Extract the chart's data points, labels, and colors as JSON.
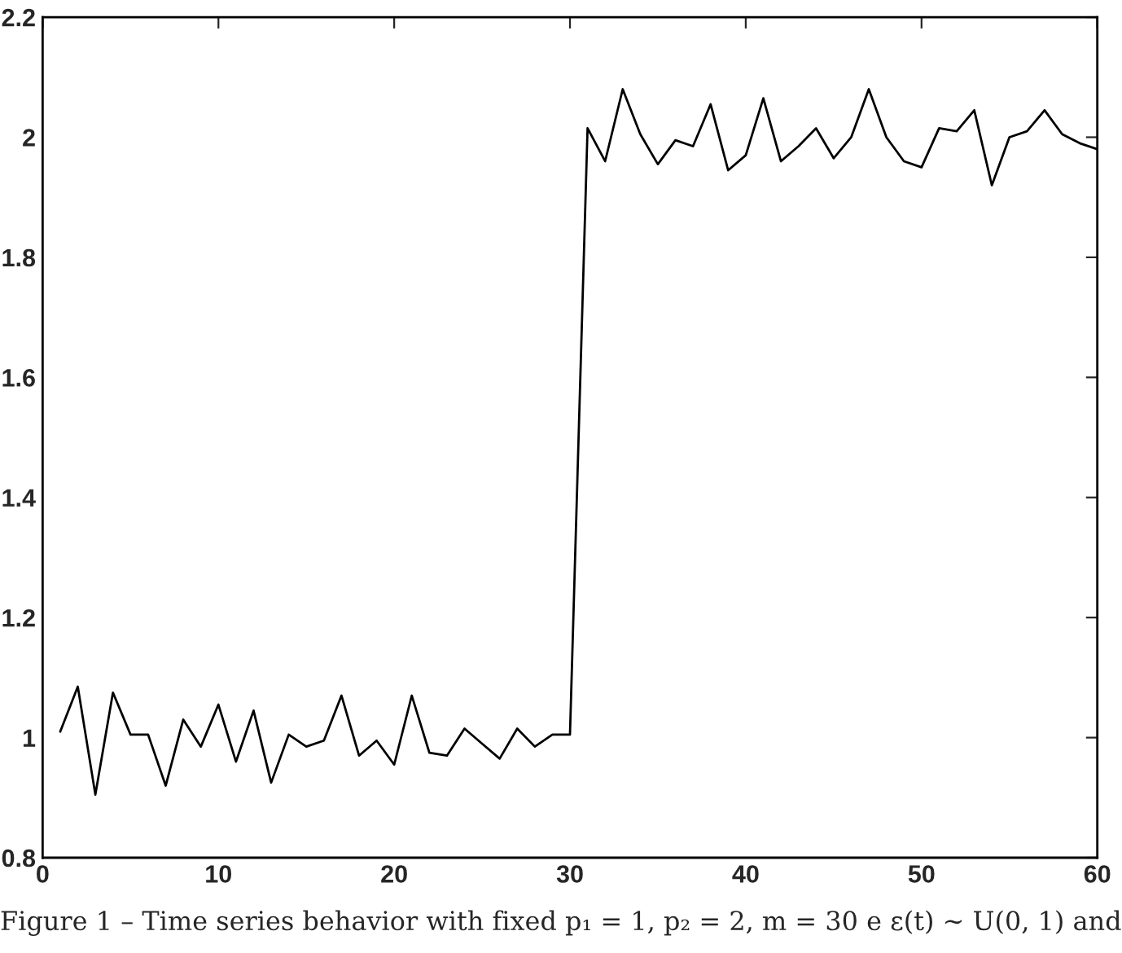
{
  "chart_data": {
    "type": "line",
    "x": [
      1,
      2,
      3,
      4,
      5,
      6,
      7,
      8,
      9,
      10,
      11,
      12,
      13,
      14,
      15,
      16,
      17,
      18,
      19,
      20,
      21,
      22,
      23,
      24,
      25,
      26,
      27,
      28,
      29,
      30,
      31,
      32,
      33,
      34,
      35,
      36,
      37,
      38,
      39,
      40,
      41,
      42,
      43,
      44,
      45,
      46,
      47,
      48,
      49,
      50,
      51,
      52,
      53,
      54,
      55,
      56,
      57,
      58,
      59,
      60
    ],
    "series": [
      {
        "color": "#000000",
        "values": [
          1.01,
          1.085,
          0.905,
          1.075,
          1.005,
          1.005,
          0.92,
          1.03,
          0.985,
          1.055,
          0.96,
          1.045,
          0.925,
          1.005,
          0.985,
          0.995,
          1.07,
          0.97,
          0.995,
          0.955,
          1.07,
          0.975,
          0.97,
          1.015,
          0.99,
          0.965,
          1.015,
          0.985,
          1.005,
          1.005,
          2.015,
          1.96,
          2.08,
          2.005,
          1.955,
          1.995,
          1.985,
          2.055,
          1.945,
          1.97,
          2.065,
          1.96,
          1.985,
          2.015,
          1.965,
          2.0,
          2.08,
          2.0,
          1.96,
          1.95,
          2.015,
          2.01,
          2.045,
          1.92,
          2.0,
          2.01,
          2.045,
          2.005,
          1.99,
          1.98
        ]
      }
    ],
    "xlim": [
      0,
      60
    ],
    "xticks": [
      0,
      10,
      20,
      30,
      40,
      50,
      60
    ],
    "ylim": [
      0.8,
      2.2
    ],
    "yticks": [
      0.8,
      1,
      1.2,
      1.4,
      1.6,
      1.8,
      2,
      2.2
    ],
    "grid": false,
    "legend": false,
    "marker": "none",
    "line_style": "solid",
    "annotations": [
      "Figure 1 – Time series behavior with fixed p₁ = 1, p₂ = 2, m = 30 e ε(t) ∼ U(0, 1) and"
    ]
  }
}
